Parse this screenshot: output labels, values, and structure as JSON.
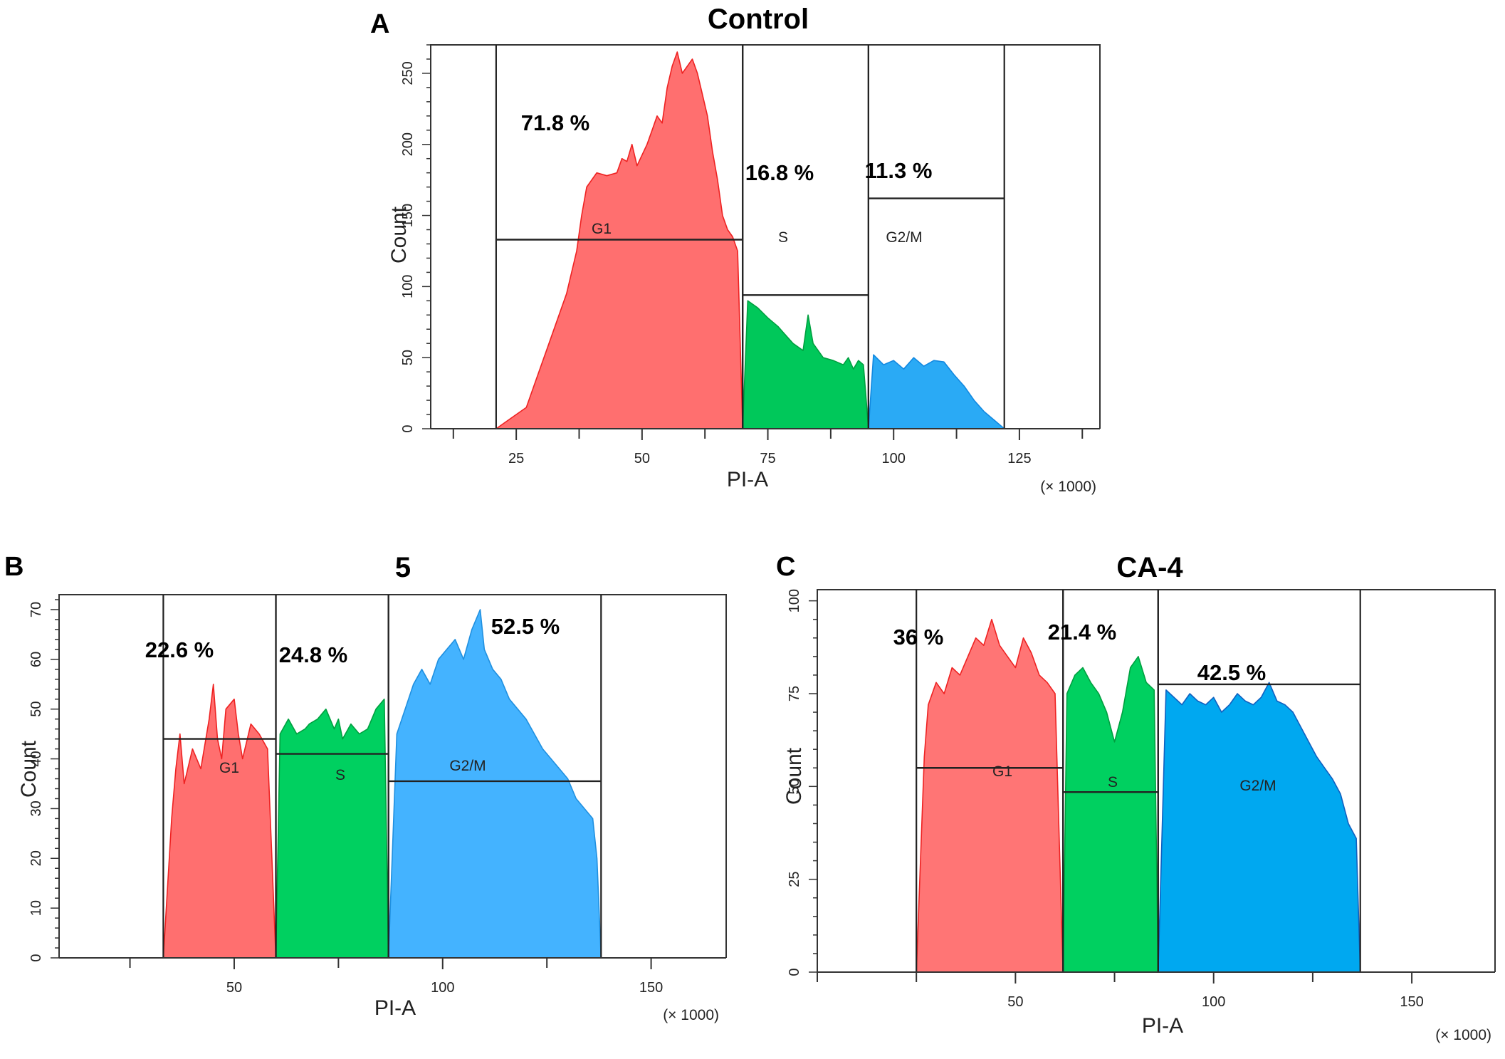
{
  "chart_data": [
    {
      "type": "area",
      "panel": "A",
      "title": "Control",
      "xlabel": "PI-A",
      "ylabel": "Count",
      "x_unit": "(× 1000)",
      "xlim": [
        8,
        141
      ],
      "ylim": [
        0,
        270
      ],
      "xticks": [
        25,
        50,
        75,
        100,
        125
      ],
      "yticks": [
        0,
        50,
        100,
        150,
        200,
        250
      ],
      "gates": [
        {
          "name": "G1",
          "percent": "71.8 %",
          "x_start": 21,
          "x_end": 70,
          "marker_y": 133,
          "color": "#ff6f6f",
          "edge": "#ee2222",
          "x": [
            21,
            23,
            25,
            27,
            29,
            31,
            33,
            35,
            37,
            38,
            39,
            41,
            43,
            45,
            46,
            47,
            48,
            49,
            51,
            52,
            53,
            54,
            55,
            56,
            57,
            58,
            59,
            60,
            61,
            62,
            63,
            64,
            65,
            66,
            67,
            68,
            69,
            70
          ],
          "y": [
            0,
            5,
            10,
            15,
            35,
            55,
            75,
            95,
            125,
            150,
            170,
            180,
            178,
            180,
            190,
            188,
            200,
            185,
            200,
            210,
            220,
            215,
            240,
            255,
            265,
            250,
            255,
            260,
            250,
            235,
            220,
            195,
            175,
            150,
            140,
            135,
            125,
            0
          ]
        },
        {
          "name": "S",
          "percent": "16.8 %",
          "x_start": 70,
          "x_end": 95,
          "marker_y": 94,
          "color": "#00c85a",
          "edge": "#00a040",
          "x": [
            70,
            71,
            73,
            75,
            77,
            78,
            80,
            82,
            83,
            84,
            85,
            86,
            88,
            90,
            91,
            92,
            93,
            94,
            95
          ],
          "y": [
            0,
            90,
            85,
            78,
            72,
            68,
            60,
            55,
            80,
            60,
            55,
            50,
            48,
            45,
            50,
            42,
            48,
            45,
            0
          ]
        },
        {
          "name": "G2/M",
          "percent": "11.3 %",
          "x_start": 95,
          "x_end": 122,
          "marker_y": 162,
          "color": "#2aaaf5",
          "edge": "#1188e0",
          "x": [
            95,
            96,
            98,
            100,
            102,
            104,
            106,
            108,
            110,
            112,
            114,
            116,
            118,
            120,
            122
          ],
          "y": [
            0,
            52,
            45,
            48,
            42,
            50,
            44,
            48,
            47,
            38,
            30,
            20,
            12,
            6,
            0
          ]
        }
      ]
    },
    {
      "type": "area",
      "panel": "B",
      "title": "5",
      "xlabel": "PI-A",
      "ylabel": "Count",
      "x_unit": "(× 1000)",
      "xlim": [
        8,
        168
      ],
      "ylim": [
        0,
        73
      ],
      "xticks": [
        50,
        100,
        150
      ],
      "yticks": [
        0,
        10,
        20,
        30,
        40,
        50,
        60,
        70
      ],
      "gates": [
        {
          "name": "G1",
          "percent": "22.6 %",
          "x_start": 33,
          "x_end": 60,
          "marker_y": 44,
          "color": "#ff6f6f",
          "edge": "#ee2222",
          "x": [
            33,
            35,
            36,
            37,
            38,
            40,
            42,
            44,
            45,
            46,
            47,
            48,
            50,
            51,
            52,
            54,
            56,
            58,
            60
          ],
          "y": [
            0,
            28,
            38,
            45,
            35,
            42,
            38,
            48,
            55,
            44,
            40,
            50,
            52,
            45,
            40,
            47,
            45,
            42,
            0
          ]
        },
        {
          "name": "S",
          "percent": "24.8 %",
          "x_start": 60,
          "x_end": 87,
          "marker_y": 41,
          "color": "#00d060",
          "edge": "#00a040",
          "x": [
            60,
            61,
            63,
            65,
            67,
            68,
            70,
            72,
            74,
            75,
            76,
            78,
            80,
            82,
            84,
            86,
            87
          ],
          "y": [
            0,
            45,
            48,
            45,
            46,
            47,
            48,
            50,
            46,
            48,
            44,
            47,
            45,
            46,
            50,
            52,
            0
          ]
        },
        {
          "name": "G2/M",
          "percent": "52.5 %",
          "x_start": 87,
          "x_end": 138,
          "marker_y": 35.5,
          "color": "#44b3ff",
          "edge": "#2090e0",
          "x": [
            87,
            89,
            91,
            93,
            95,
            97,
            99,
            101,
            103,
            105,
            107,
            109,
            110,
            112,
            114,
            116,
            118,
            120,
            122,
            124,
            126,
            128,
            130,
            132,
            134,
            136,
            137,
            138
          ],
          "y": [
            0,
            45,
            50,
            55,
            58,
            55,
            60,
            62,
            64,
            60,
            66,
            70,
            62,
            58,
            56,
            52,
            50,
            48,
            45,
            42,
            40,
            38,
            36,
            32,
            30,
            28,
            20,
            0
          ]
        }
      ]
    },
    {
      "type": "area",
      "panel": "C",
      "title": "CA-4",
      "xlabel": "PI-A",
      "ylabel": "Count",
      "x_unit": "(× 1000)",
      "xlim": [
        0,
        171
      ],
      "ylim": [
        0,
        103
      ],
      "xticks": [
        50,
        100,
        150
      ],
      "yticks": [
        0,
        25,
        50,
        75,
        100
      ],
      "gates": [
        {
          "name": "G1",
          "percent": "36 %",
          "x_start": 25,
          "x_end": 62,
          "marker_y": 55,
          "color": "#ff7575",
          "edge": "#ee2222",
          "x": [
            25,
            27,
            28,
            30,
            32,
            34,
            36,
            38,
            40,
            42,
            44,
            46,
            48,
            50,
            52,
            54,
            56,
            58,
            60,
            62
          ],
          "y": [
            0,
            58,
            72,
            78,
            75,
            82,
            80,
            85,
            90,
            88,
            95,
            88,
            85,
            82,
            90,
            86,
            80,
            78,
            75,
            0
          ]
        },
        {
          "name": "S",
          "percent": "21.4 %",
          "x_start": 62,
          "x_end": 86,
          "marker_y": 48.5,
          "color": "#00d060",
          "edge": "#00a040",
          "x": [
            62,
            63,
            65,
            67,
            69,
            71,
            73,
            75,
            77,
            79,
            81,
            83,
            85,
            86
          ],
          "y": [
            0,
            75,
            80,
            82,
            78,
            75,
            70,
            62,
            70,
            82,
            85,
            78,
            76,
            0
          ]
        },
        {
          "name": "G2/M",
          "percent": "42.5 %",
          "x_start": 86,
          "x_end": 137,
          "marker_y": 77.5,
          "color": "#00a8f0",
          "edge": "#1060c0",
          "x": [
            86,
            88,
            90,
            92,
            94,
            96,
            98,
            100,
            102,
            104,
            106,
            108,
            110,
            112,
            114,
            116,
            118,
            120,
            122,
            124,
            126,
            128,
            130,
            132,
            134,
            136,
            137
          ],
          "y": [
            0,
            76,
            74,
            72,
            75,
            73,
            72,
            74,
            70,
            72,
            75,
            73,
            72,
            74,
            78,
            73,
            72,
            70,
            66,
            62,
            58,
            55,
            52,
            48,
            40,
            36,
            0
          ]
        }
      ]
    }
  ]
}
